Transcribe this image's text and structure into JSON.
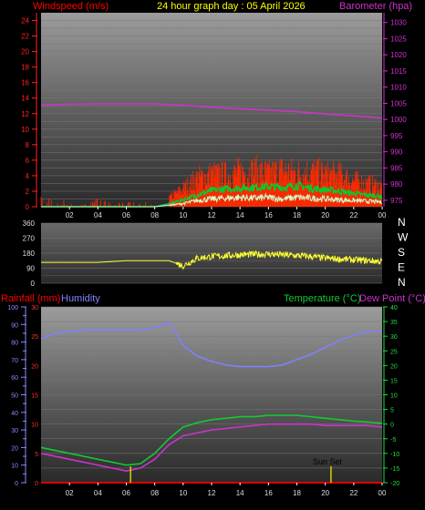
{
  "colors": {
    "windspeed": "#ff0000",
    "gust": "#ff2a00",
    "windavg": "#00cc33",
    "windlow": "#ccffcc",
    "barometer": "#cc33cc",
    "winddir": "#ffff33",
    "humidity": "#8080ff",
    "temperature": "#11cc33",
    "dewpoint": "#cc33cc",
    "rainfall": "#dd0000",
    "sun": "#ddcc00"
  },
  "chart_data": [
    {
      "type": "line",
      "title": "24 hour graph day : 05 April 2026",
      "ylabel_left": "Windspeed (m/s)",
      "ylabel_right": "Barometer (hpa)",
      "x_ticks": [
        "02",
        "04",
        "06",
        "08",
        "10",
        "12",
        "14",
        "16",
        "18",
        "20",
        "22",
        "00"
      ],
      "x_range_hours": [
        0,
        24
      ],
      "y_left_ticks": [
        "0",
        "2",
        "4",
        "6",
        "8",
        "10",
        "12",
        "14",
        "16",
        "18",
        "20",
        "22",
        "24"
      ],
      "y_left_range": [
        0,
        25
      ],
      "y_right_ticks": [
        "975",
        "980",
        "985",
        "990",
        "995",
        "1000",
        "1005",
        "1010",
        "1015",
        "1020",
        "1025",
        "1030"
      ],
      "y_right_range": [
        973,
        1033
      ],
      "grid": true,
      "series": [
        {
          "name": "Barometer (hpa)",
          "axis": "right",
          "x": [
            0,
            2,
            4,
            6,
            8,
            10,
            12,
            14,
            16,
            18,
            20,
            22,
            24
          ],
          "values": [
            1004.5,
            1004.7,
            1004.8,
            1004.9,
            1004.8,
            1004.4,
            1003.8,
            1003.3,
            1002.9,
            1002.4,
            1001.7,
            1001.1,
            1000.4
          ]
        },
        {
          "name": "Windspeed gust",
          "axis": "left",
          "x": [
            0,
            1,
            2,
            3,
            4,
            5,
            6,
            7,
            8,
            9,
            10,
            11,
            12,
            13,
            14,
            15,
            16,
            17,
            18,
            19,
            20,
            21,
            22,
            23,
            24
          ],
          "values": [
            1,
            1.2,
            0.3,
            0.2,
            0.8,
            0.5,
            0.6,
            0.4,
            0.5,
            1.2,
            2.5,
            4,
            4.5,
            4.4,
            4.8,
            5,
            4.6,
            5.1,
            4.7,
            4.9,
            4.5,
            4.4,
            3.6,
            3.2,
            2.8
          ]
        },
        {
          "name": "Windspeed average",
          "axis": "left",
          "x": [
            0,
            2,
            4,
            6,
            8,
            9,
            10,
            11,
            12,
            13,
            14,
            15,
            16,
            17,
            18,
            19,
            20,
            21,
            22,
            23,
            24
          ],
          "values": [
            0,
            0,
            0,
            0,
            0,
            0.4,
            0.9,
            1.5,
            2.1,
            2.3,
            2.4,
            2.5,
            2.6,
            2.5,
            2.7,
            2.4,
            2.2,
            2.0,
            1.7,
            1.5,
            1.3
          ]
        },
        {
          "name": "Windspeed low",
          "axis": "left",
          "x": [
            0,
            8,
            9,
            10,
            11,
            12,
            13,
            14,
            15,
            16,
            17,
            18,
            19,
            20,
            21,
            22,
            23,
            24
          ],
          "values": [
            0,
            0,
            0.2,
            0.4,
            0.8,
            1.0,
            1.1,
            1.2,
            1.1,
            1.2,
            1.0,
            1.2,
            1.1,
            1.0,
            0.9,
            0.8,
            0.7,
            0.6
          ]
        }
      ]
    },
    {
      "type": "scatter",
      "ylabel_right_letters": [
        "N",
        "W",
        "S",
        "E",
        "N"
      ],
      "x_range_hours": [
        0,
        24
      ],
      "y_ticks": [
        "360",
        "270",
        "180",
        "90",
        "0"
      ],
      "y_range": [
        0,
        360
      ],
      "grid": true,
      "series": [
        {
          "name": "Wind direction",
          "x": [
            0,
            2,
            4,
            6,
            8,
            9,
            10,
            11,
            12,
            13,
            14,
            15,
            16,
            17,
            18,
            19,
            20,
            21,
            22,
            23,
            24
          ],
          "values": [
            125,
            125,
            125,
            135,
            135,
            135,
            105,
            150,
            160,
            165,
            170,
            172,
            175,
            170,
            165,
            160,
            150,
            145,
            140,
            135,
            130
          ]
        }
      ]
    },
    {
      "type": "line",
      "ylabel_left_rain": "Rainfall (mm)",
      "ylabel_left_hum": "Humidity",
      "ylabel_right_temp": "Temperature (°C)",
      "ylabel_right_dew": "Dew Point (°C)",
      "x_ticks": [
        "02",
        "04",
        "06",
        "08",
        "10",
        "12",
        "14",
        "16",
        "18",
        "20",
        "22",
        "00"
      ],
      "x_range_hours": [
        0,
        24
      ],
      "humidity_ticks": [
        "0",
        "10",
        "20",
        "30",
        "40",
        "50",
        "60",
        "70",
        "80",
        "90",
        "100"
      ],
      "humidity_range": [
        0,
        100
      ],
      "rain_ticks": [
        "0",
        "5",
        "10",
        "15",
        "20",
        "25",
        "30"
      ],
      "rain_range": [
        0,
        30
      ],
      "temp_ticks": [
        "-20",
        "-15",
        "-10",
        "-5",
        "0",
        "5",
        "10",
        "15",
        "20",
        "25",
        "30",
        "35",
        "40"
      ],
      "temp_range": [
        -20,
        40
      ],
      "annotation": "Sun Set",
      "grid": true,
      "series": [
        {
          "name": "Humidity",
          "axis": "humidity",
          "x": [
            0,
            1,
            2,
            3,
            4,
            5,
            6,
            7,
            8,
            8.5,
            9,
            9.3,
            10,
            11,
            12,
            13,
            14,
            15,
            16,
            17,
            18,
            19,
            20,
            21,
            22,
            23,
            24
          ],
          "values": [
            82,
            85,
            86,
            87,
            87,
            87,
            87,
            87,
            88,
            90,
            91,
            88,
            78,
            72,
            69,
            67,
            66,
            66,
            66,
            67,
            70,
            73,
            77,
            81,
            84,
            86,
            86
          ]
        },
        {
          "name": "Temperature (°C)",
          "axis": "temp",
          "x": [
            0,
            1,
            2,
            3,
            4,
            5,
            6,
            7,
            8,
            9,
            10,
            11,
            12,
            13,
            14,
            15,
            16,
            17,
            18,
            19,
            20,
            21,
            22,
            23,
            24
          ],
          "values": [
            -8,
            -9,
            -10,
            -11,
            -12,
            -13,
            -14,
            -13.5,
            -10,
            -5,
            -1,
            0.5,
            1.5,
            2,
            2.5,
            2.5,
            3,
            3,
            3,
            2.5,
            2,
            1.5,
            1,
            0.7,
            0.3
          ]
        },
        {
          "name": "Dew Point (°C)",
          "axis": "temp",
          "x": [
            0,
            1,
            2,
            3,
            4,
            5,
            6,
            7,
            8,
            9,
            10,
            11,
            12,
            13,
            14,
            15,
            16,
            17,
            18,
            19,
            20,
            21,
            22,
            23,
            24
          ],
          "values": [
            -10,
            -11,
            -12,
            -13,
            -14,
            -15,
            -16,
            -15,
            -12,
            -7,
            -4,
            -3,
            -2,
            -1.5,
            -1,
            -0.5,
            0,
            0,
            0,
            0,
            -0.5,
            -0.5,
            -0.5,
            -0.5,
            -1
          ]
        },
        {
          "name": "Rainfall (mm)",
          "axis": "rain",
          "x": [
            0,
            24
          ],
          "values": [
            0,
            0
          ]
        }
      ],
      "sun_markers_hours": [
        6.3,
        20.4
      ]
    }
  ]
}
